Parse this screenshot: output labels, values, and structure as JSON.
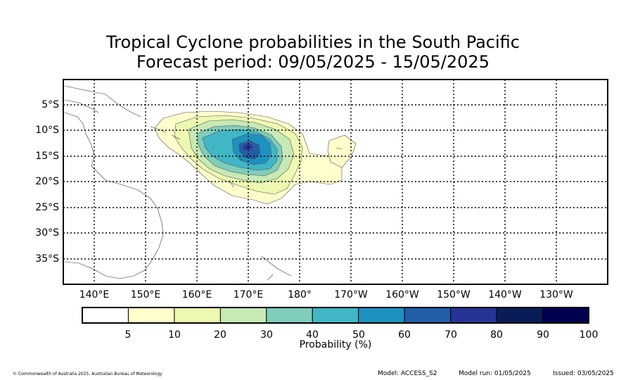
{
  "title_line1": "Tropical Cyclone probabilities in the South Pacific",
  "title_line2": "Forecast period: 09/05/2025 - 15/05/2025",
  "lat_labels": [
    "5°S",
    "10°S",
    "15°S",
    "20°S",
    "25°S",
    "30°S",
    "35°S"
  ],
  "lon_labels": [
    "140°E",
    "150°E",
    "160°E",
    "170°E",
    "180°",
    "170°W",
    "160°W",
    "150°W",
    "140°W",
    "130°W"
  ],
  "colorbar": {
    "label": "Probability (%)",
    "ticks": [
      "5",
      "10",
      "20",
      "30",
      "40",
      "50",
      "60",
      "70",
      "80",
      "90",
      "100"
    ],
    "colors": [
      "#ffffff",
      "#ffffcc",
      "#edf8b1",
      "#c7e9b4",
      "#7fcdbb",
      "#41b6c4",
      "#1d91c0",
      "#225ea8",
      "#253494",
      "#081d58",
      "#000050"
    ]
  },
  "footer": {
    "copyright": "© Commonwealth of Australia 2025, Australian Bureau of Meteorology",
    "model": "Model: ACCESS_S2",
    "model_run": "Model run: 01/05/2025",
    "issued": "Issued: 03/05/2025"
  }
}
